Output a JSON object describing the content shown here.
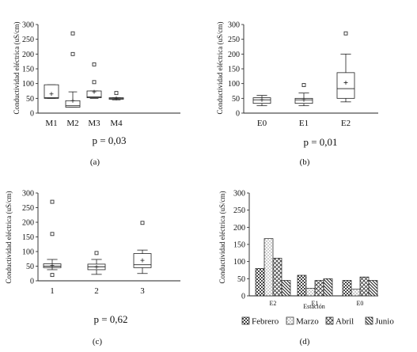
{
  "chart_data": [
    {
      "id": "a",
      "type": "box",
      "panel_label": "(a)",
      "p_value": "p = 0,03",
      "ylabel": "Conductividad eléctrica (uS/cm)",
      "ylim": [
        0,
        300
      ],
      "yticks": [
        "0",
        "50",
        "100",
        "150",
        "200",
        "250",
        "300"
      ],
      "categories": [
        "M1",
        "M2",
        "M3",
        "M4"
      ],
      "boxes": [
        {
          "min": 50,
          "q1": 50,
          "median": 52,
          "q3": 96,
          "max": 96,
          "mean": 65,
          "outliers": []
        },
        {
          "min": 20,
          "q1": 20,
          "median": 25,
          "q3": 42,
          "max": 72,
          "mean": 42,
          "outliers": [
            200,
            270
          ]
        },
        {
          "min": 50,
          "q1": 52,
          "median": 55,
          "q3": 75,
          "max": 75,
          "mean": 72,
          "outliers": [
            105,
            165
          ]
        },
        {
          "min": 45,
          "q1": 47,
          "median": 50,
          "q3": 52,
          "max": 52,
          "mean": 50,
          "outliers": [
            68
          ]
        }
      ]
    },
    {
      "id": "b",
      "type": "box",
      "panel_label": "(b)",
      "p_value": "p = 0,01",
      "ylabel": "Conductividad eléctrica (uS/cm)",
      "ylim": [
        0,
        300
      ],
      "yticks": [
        "0",
        "50",
        "100",
        "150",
        "200",
        "250",
        "300"
      ],
      "categories": [
        "E0",
        "E1",
        "E2"
      ],
      "boxes": [
        {
          "min": 25,
          "q1": 33,
          "median": 45,
          "q3": 52,
          "max": 60,
          "mean": 45,
          "outliers": []
        },
        {
          "min": 25,
          "q1": 33,
          "median": 45,
          "q3": 50,
          "max": 68,
          "mean": 45,
          "outliers": [
            95
          ]
        },
        {
          "min": 38,
          "q1": 50,
          "median": 83,
          "q3": 137,
          "max": 200,
          "mean": 103,
          "outliers": [
            270
          ]
        }
      ]
    },
    {
      "id": "c",
      "type": "box",
      "panel_label": "(c)",
      "p_value": "p = 0,62",
      "ylabel": "Conductividad eléctrica (uS/cm)",
      "ylim": [
        0,
        300
      ],
      "yticks": [
        "0",
        "50",
        "100",
        "150",
        "200",
        "250",
        "300"
      ],
      "categories": [
        "1",
        "2",
        "3"
      ],
      "boxes": [
        {
          "min": 38,
          "q1": 45,
          "median": 50,
          "q3": 58,
          "max": 73,
          "mean": 52,
          "outliers": [
            20,
            160,
            270
          ]
        },
        {
          "min": 22,
          "q1": 38,
          "median": 48,
          "q3": 57,
          "max": 73,
          "mean": 47,
          "outliers": [
            95
          ]
        },
        {
          "min": 25,
          "q1": 45,
          "median": 55,
          "q3": 93,
          "max": 105,
          "mean": 70,
          "outliers": [
            198
          ]
        }
      ]
    },
    {
      "id": "d",
      "type": "bar",
      "panel_label": "(d)",
      "ylabel": "Conductividad eléctrica (uS/cm)",
      "xlabel": "Estación",
      "ylim": [
        0,
        300
      ],
      "yticks": [
        "0",
        "50",
        "100",
        "150",
        "200",
        "250",
        "300"
      ],
      "categories": [
        "E2",
        "E1",
        "E0"
      ],
      "series": [
        {
          "name": "Febrero",
          "values": [
            80,
            60,
            45
          ]
        },
        {
          "name": "Marzo",
          "values": [
            167,
            22,
            20
          ]
        },
        {
          "name": "Abril",
          "values": [
            110,
            45,
            55
          ]
        },
        {
          "name": "Junio",
          "values": [
            45,
            50,
            45
          ]
        }
      ]
    }
  ]
}
